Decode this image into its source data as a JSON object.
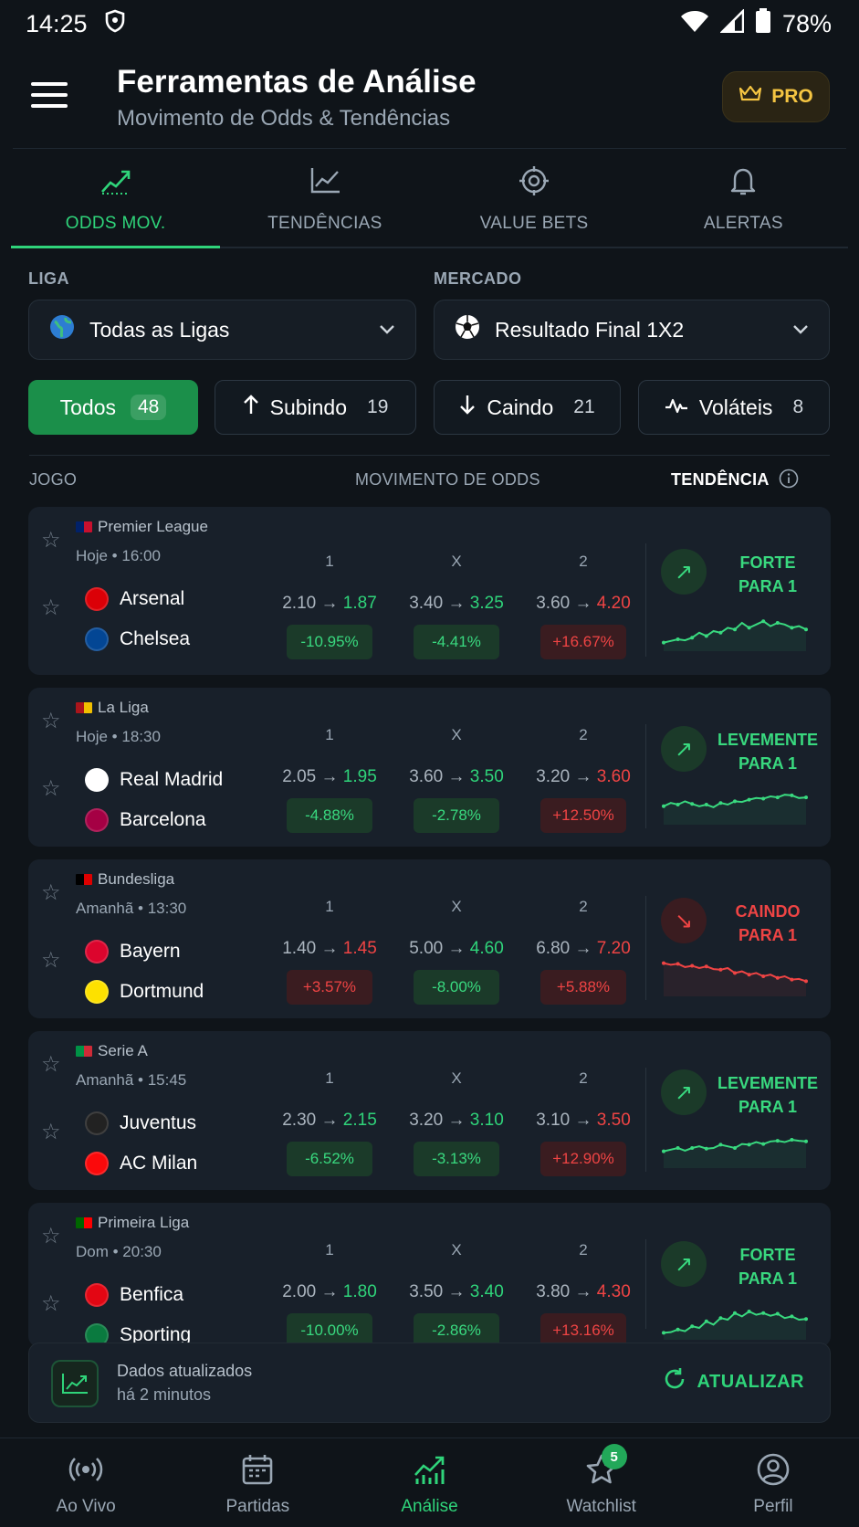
{
  "status": {
    "time": "14:25",
    "battery": "78%"
  },
  "header": {
    "title": "Ferramentas de Análise",
    "subtitle": "Movimento de Odds & Tendências",
    "pro_label": "PRO"
  },
  "tabs": [
    {
      "label": "ODDS MOV.",
      "icon": "trending-up-icon",
      "active": true
    },
    {
      "label": "TENDÊNCIAS",
      "icon": "line-chart-icon"
    },
    {
      "label": "VALUE BETS",
      "icon": "target-icon"
    },
    {
      "label": "ALERTAS",
      "icon": "bell-icon"
    }
  ],
  "filters": {
    "liga_label": "LIGA",
    "liga_value": "Todas as Ligas",
    "mercado_label": "MERCADO",
    "mercado_value": "Resultado Final 1X2"
  },
  "chips": [
    {
      "label": "Todos",
      "count": "48"
    },
    {
      "label": "Subindo",
      "count": "19"
    },
    {
      "label": "Caindo",
      "count": "21"
    },
    {
      "label": "Voláteis",
      "count": "8"
    }
  ],
  "columns": {
    "game": "JOGO",
    "movement": "MOVIMENTO DE ODDS",
    "trend": "TENDÊNCIA"
  },
  "odds_headers": [
    "1",
    "X",
    "2"
  ],
  "matches": [
    {
      "league": "Premier League",
      "time": "Hoje • 16:00",
      "home": "Arsenal",
      "away": "Chelsea",
      "odds": [
        {
          "from": "2.10",
          "to": "1.87",
          "pct": "-10.95%"
        },
        {
          "from": "3.40",
          "to": "3.25",
          "pct": "-4.41%"
        },
        {
          "from": "3.60",
          "to": "4.20",
          "pct": "+16.67%"
        }
      ],
      "trend_l1": "FORTE",
      "trend_l2": "PARA 1",
      "trend_dir": "up",
      "color": "#39d97f",
      "spark": [
        0.15,
        0.2,
        0.25,
        0.22,
        0.3,
        0.45,
        0.35,
        0.5,
        0.45,
        0.6,
        0.55,
        0.75,
        0.6,
        0.7,
        0.8,
        0.65,
        0.75,
        0.7,
        0.6,
        0.65,
        0.55
      ]
    },
    {
      "league": "La Liga",
      "time": "Hoje • 18:30",
      "home": "Real Madrid",
      "away": "Barcelona",
      "odds": [
        {
          "from": "2.05",
          "to": "1.95",
          "pct": "-4.88%"
        },
        {
          "from": "3.60",
          "to": "3.50",
          "pct": "-2.78%"
        },
        {
          "from": "3.20",
          "to": "3.60",
          "pct": "+12.50%"
        }
      ],
      "trend_l1": "LEVEMENTE",
      "trend_l2": "PARA 1",
      "trend_dir": "up",
      "color": "#39d97f",
      "spark": [
        0.45,
        0.55,
        0.5,
        0.6,
        0.52,
        0.45,
        0.5,
        0.42,
        0.55,
        0.5,
        0.6,
        0.58,
        0.65,
        0.7,
        0.68,
        0.75,
        0.72,
        0.8,
        0.78,
        0.7,
        0.72
      ]
    },
    {
      "league": "Bundesliga",
      "time": "Amanhã • 13:30",
      "home": "Bayern",
      "away": "Dortmund",
      "odds": [
        {
          "from": "1.40",
          "to": "1.45",
          "pct": "+3.57%"
        },
        {
          "from": "5.00",
          "to": "4.60",
          "pct": "-8.00%"
        },
        {
          "from": "6.80",
          "to": "7.20",
          "pct": "+5.88%"
        }
      ],
      "trend_l1": "CAINDO",
      "trend_l2": "PARA 1",
      "trend_dir": "down",
      "color": "#ef4444",
      "spark": [
        0.9,
        0.85,
        0.88,
        0.78,
        0.82,
        0.75,
        0.8,
        0.72,
        0.7,
        0.75,
        0.6,
        0.65,
        0.55,
        0.6,
        0.5,
        0.55,
        0.45,
        0.5,
        0.4,
        0.42,
        0.35
      ]
    },
    {
      "league": "Serie A",
      "time": "Amanhã • 15:45",
      "home": "Juventus",
      "away": "AC Milan",
      "odds": [
        {
          "from": "2.30",
          "to": "2.15",
          "pct": "-6.52%"
        },
        {
          "from": "3.20",
          "to": "3.10",
          "pct": "-3.13%"
        },
        {
          "from": "3.10",
          "to": "3.50",
          "pct": "+12.90%"
        }
      ],
      "trend_l1": "LEVEMENTE",
      "trend_l2": "PARA 1",
      "trend_dir": "up",
      "color": "#39d97f",
      "spark": [
        0.4,
        0.45,
        0.5,
        0.42,
        0.5,
        0.55,
        0.48,
        0.5,
        0.6,
        0.55,
        0.5,
        0.62,
        0.6,
        0.68,
        0.62,
        0.7,
        0.72,
        0.68,
        0.75,
        0.72,
        0.7
      ]
    },
    {
      "league": "Primeira Liga",
      "time": "Dom • 20:30",
      "home": "Benfica",
      "away": "Sporting",
      "odds": [
        {
          "from": "2.00",
          "to": "1.80",
          "pct": "-10.00%"
        },
        {
          "from": "3.50",
          "to": "3.40",
          "pct": "-2.86%"
        },
        {
          "from": "3.80",
          "to": "4.30",
          "pct": "+13.16%"
        }
      ],
      "trend_l1": "FORTE",
      "trend_l2": "PARA 1",
      "trend_dir": "up",
      "color": "#39d97f",
      "spark": [
        0.1,
        0.12,
        0.2,
        0.15,
        0.3,
        0.25,
        0.45,
        0.35,
        0.55,
        0.5,
        0.7,
        0.6,
        0.75,
        0.65,
        0.7,
        0.62,
        0.68,
        0.55,
        0.6,
        0.5,
        0.52
      ]
    }
  ],
  "update": {
    "line1": "Dados atualizados",
    "line2": "há 2 minutos",
    "button": "ATUALIZAR"
  },
  "bottom_nav": [
    {
      "label": "Ao Vivo",
      "icon": "live-icon"
    },
    {
      "label": "Partidas",
      "icon": "calendar-icon"
    },
    {
      "label": "Análise",
      "icon": "analytics-icon",
      "active": true
    },
    {
      "label": "Watchlist",
      "icon": "star-icon",
      "badge": "5"
    },
    {
      "label": "Perfil",
      "icon": "profile-icon"
    }
  ]
}
